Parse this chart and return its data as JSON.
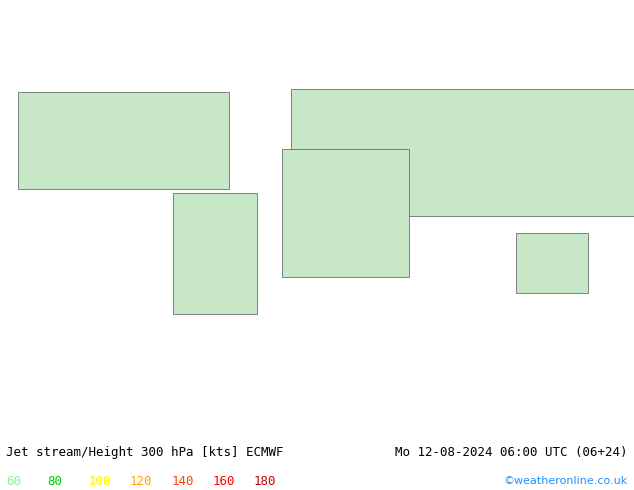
{
  "title_left": "Jet stream/Height 300 hPa [kts] ECMWF",
  "title_right": "Mo 12-08-2024 06:00 UTC (06+24)",
  "credit": "©weatheronline.co.uk",
  "legend_values": [
    60,
    80,
    100,
    120,
    140,
    160,
    180
  ],
  "legend_colors": [
    "#90ee90",
    "#00cc00",
    "#ffff00",
    "#ffa500",
    "#ff4500",
    "#ff0000",
    "#cc0000"
  ],
  "background_color": "#ffffff",
  "map_ocean_color": "#d0e8f0",
  "map_land_color": "#c8e6c8",
  "contour_color": "#000000",
  "title_fontsize": 9,
  "credit_color": "#1e90ff",
  "figsize": [
    6.34,
    4.9
  ],
  "dpi": 100
}
